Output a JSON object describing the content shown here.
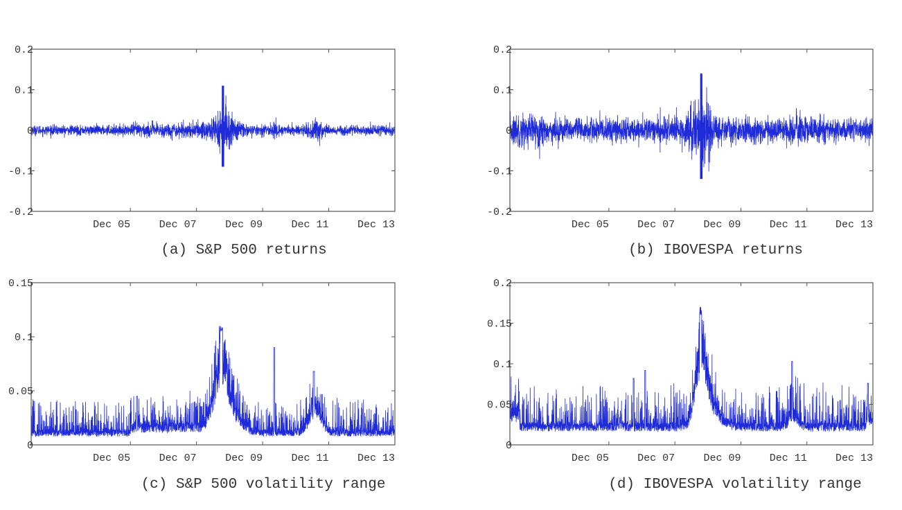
{
  "colors": {
    "series": "#1f2bd9",
    "axes": "#555555",
    "text": "#333333",
    "background": "#ffffff"
  },
  "chart_data": [
    {
      "type": "line",
      "caption": "(a) S&P 500 returns",
      "series": [
        {
          "name": "S&P 500 returns",
          "profile": "returns_sp500"
        }
      ],
      "x_range": [
        2003.0,
        2014.0
      ],
      "x_ticks": [
        2006.0,
        2008.0,
        2010.0,
        2012.0,
        2014.0
      ],
      "x_tick_labels": [
        "Dec 05",
        "Dec 07",
        "Dec 09",
        "Dec 11",
        "Dec 13"
      ],
      "y_range": [
        -0.2,
        0.2
      ],
      "y_ticks": [
        -0.2,
        -0.1,
        0,
        0.1,
        0.2
      ],
      "y_tick_labels": [
        "-0.2",
        "-0.1",
        "0",
        "0.1",
        "0.2"
      ],
      "approx_y_max": 0.11,
      "approx_y_min": -0.09,
      "grid": false
    },
    {
      "type": "line",
      "caption": "(b) IBOVESPA returns",
      "series": [
        {
          "name": "IBOVESPA returns",
          "profile": "returns_ibov"
        }
      ],
      "x_range": [
        2003.0,
        2014.0
      ],
      "x_ticks": [
        2006.0,
        2008.0,
        2010.0,
        2012.0,
        2014.0
      ],
      "x_tick_labels": [
        "Dec 05",
        "Dec 07",
        "Dec 09",
        "Dec 11",
        "Dec 13"
      ],
      "y_range": [
        -0.2,
        0.2
      ],
      "y_ticks": [
        -0.2,
        -0.1,
        0,
        0.1,
        0.2
      ],
      "y_tick_labels": [
        "-0.2",
        "-0.1",
        "0",
        "0.1",
        "0.2"
      ],
      "approx_y_max": 0.14,
      "approx_y_min": -0.12,
      "grid": false
    },
    {
      "type": "line",
      "caption": "(c) S&P 500 volatility range",
      "series": [
        {
          "name": "S&P 500 volatility range",
          "profile": "vol_sp500"
        }
      ],
      "x_range": [
        2003.0,
        2014.0
      ],
      "x_ticks": [
        2006.0,
        2008.0,
        2010.0,
        2012.0,
        2014.0
      ],
      "x_tick_labels": [
        "Dec 05",
        "Dec 07",
        "Dec 09",
        "Dec 11",
        "Dec 13"
      ],
      "y_range": [
        0,
        0.15
      ],
      "y_ticks": [
        0,
        0.05,
        0.1,
        0.15
      ],
      "y_tick_labels": [
        "0",
        "0.05",
        "0.1",
        "0.15"
      ],
      "approx_y_max": 0.11,
      "grid": false
    },
    {
      "type": "line",
      "caption": "(d) IBOVESPA volatility range",
      "series": [
        {
          "name": "IBOVESPA volatility range",
          "profile": "vol_ibov"
        }
      ],
      "x_range": [
        2003.0,
        2014.0
      ],
      "x_ticks": [
        2006.0,
        2008.0,
        2010.0,
        2012.0,
        2014.0
      ],
      "x_tick_labels": [
        "Dec 05",
        "Dec 07",
        "Dec 09",
        "Dec 11",
        "Dec 13"
      ],
      "y_range": [
        0,
        0.2
      ],
      "y_ticks": [
        0,
        0.05,
        0.1,
        0.15,
        0.2
      ],
      "y_tick_labels": [
        "0",
        "0.05",
        "0.1",
        "0.15",
        "0.2"
      ],
      "approx_y_max": 0.17,
      "grid": false
    }
  ]
}
